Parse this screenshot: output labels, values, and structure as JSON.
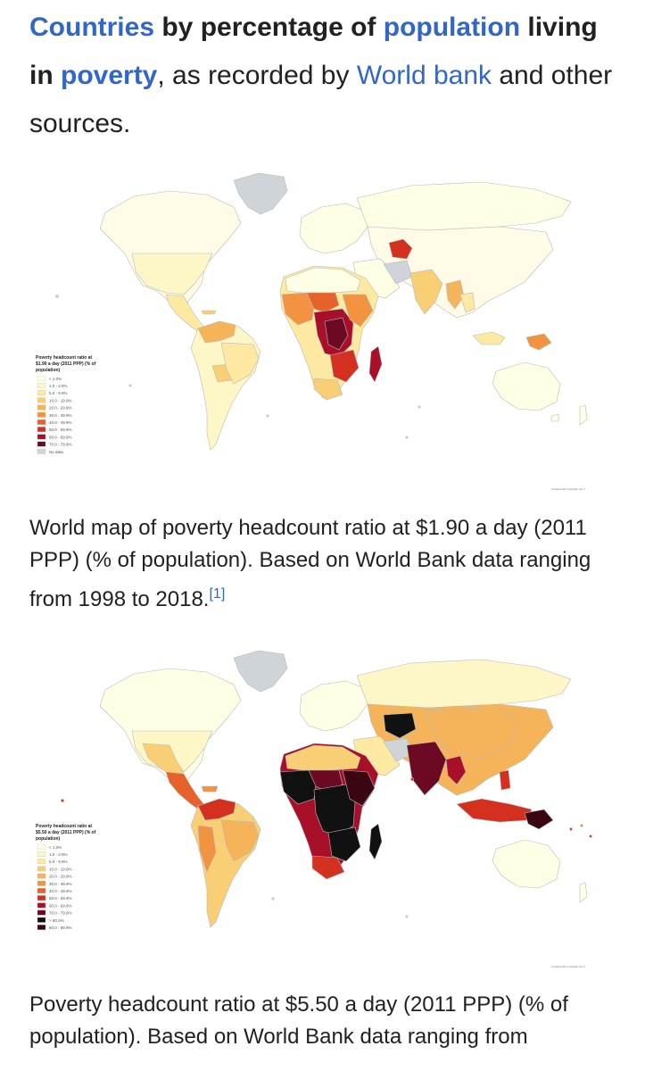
{
  "heading": {
    "w1": "Countries",
    "w2": " by percentage of ",
    "w3": "population",
    "w4": " living in ",
    "w5": "poverty",
    "w6": ", as recorded by ",
    "w7": "World bank",
    "w8": " and other sources."
  },
  "map1": {
    "legend_title_1": "Poverty headcount ratio at",
    "legend_title_2": "$1.90 a day (2011 PPP) (% of",
    "legend_title_3": "population)",
    "legend": [
      {
        "label": "< 1.0%",
        "color": "#ffffe6"
      },
      {
        "label": "1.0 - 4.9%",
        "color": "#fdf6c7"
      },
      {
        "label": "5.0 - 9.9%",
        "color": "#fde9a2"
      },
      {
        "label": "10.0 - 19.9%",
        "color": "#f9cf76"
      },
      {
        "label": "20.0 - 29.9%",
        "color": "#f5b35a"
      },
      {
        "label": "30.0 - 39.9%",
        "color": "#f19340"
      },
      {
        "label": "40.0 - 49.9%",
        "color": "#e7612a"
      },
      {
        "label": "50.0 - 59.9%",
        "color": "#d4301f"
      },
      {
        "label": "60.0 - 69.9%",
        "color": "#a8102a"
      },
      {
        "label": "70.0 - 79.9%",
        "color": "#6c0a24"
      },
      {
        "label": "No data",
        "color": "#cfd4d8"
      }
    ],
    "credit": "Created with mapchart.net ©"
  },
  "caption1": {
    "text": "World map of poverty headcount ratio at $1.90 a day (2011 PPP) (% of population). Based on World Bank data ranging from 1998 to 2018.",
    "ref": "[1]"
  },
  "map2": {
    "legend_title_1": "Poverty headcount ratio at",
    "legend_title_2": "$5.50 a day (2011 PPP) (% of",
    "legend_title_3": "population)",
    "legend": [
      {
        "label": "< 1.0%",
        "color": "#ffffe6"
      },
      {
        "label": "1.0 - 4.9%",
        "color": "#fdf6c7"
      },
      {
        "label": "5.0 - 9.9%",
        "color": "#fde9a2"
      },
      {
        "label": "10.0 - 19.9%",
        "color": "#f9cf76"
      },
      {
        "label": "20.0 - 29.9%",
        "color": "#f5b35a"
      },
      {
        "label": "30.0 - 39.9%",
        "color": "#f19340"
      },
      {
        "label": "40.0 - 49.9%",
        "color": "#e7612a"
      },
      {
        "label": "50.0 - 59.9%",
        "color": "#d4301f"
      },
      {
        "label": "60.0 - 69.9%",
        "color": "#a8102a"
      },
      {
        "label": "70.0 - 79.9%",
        "color": "#6c0a24"
      },
      {
        "label": "> 90.0%",
        "color": "#111111"
      },
      {
        "label": "80.0 - 89.9%",
        "color": "#3a0611"
      }
    ],
    "credit": "Created with mapchart.net ©"
  },
  "caption2": {
    "text": "Poverty headcount ratio at $5.50 a day (2011 PPP) (% of population). Based on World Bank data ranging from"
  }
}
